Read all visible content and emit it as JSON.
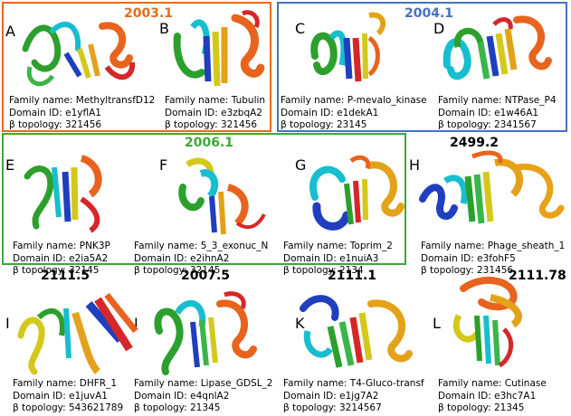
{
  "groups": [
    {
      "label": "2003.1",
      "color": "#e46c1a"
    },
    {
      "label": "2004.1",
      "color": "#4472c4"
    },
    {
      "label": "2006.1",
      "color": "#3aaa35"
    },
    {
      "label": "2499.2",
      "color": "#000000"
    },
    {
      "label": "2111.5",
      "color": "#000000"
    },
    {
      "label": "2007.5",
      "color": "#000000"
    },
    {
      "label": "2111.1",
      "color": "#000000"
    },
    {
      "label": "2111.78",
      "color": "#000000"
    }
  ],
  "panels": [
    {
      "letter": "A",
      "family": "Family name: MethyltransfD12",
      "domain": "Domain ID: e1yflA1",
      "topology": "β topology: 321456"
    },
    {
      "letter": "B",
      "family": "Family name: Tubulin",
      "domain": "Domain ID: e3zbqA2",
      "topology": "β topology: 321456"
    },
    {
      "letter": "C",
      "family": "Family name: P-mevalo_kinase",
      "domain": "Domain ID: e1dekA1",
      "topology": "β topology: 23145"
    },
    {
      "letter": "D",
      "family": "Family name: NTPase_P4",
      "domain": "Domain ID: e1w46A1",
      "topology": "β topology: 2341567"
    },
    {
      "letter": "E",
      "family": "Family name: PNK3P",
      "domain": "Domain ID: e2ia5A2",
      "topology": "β topology: 32145"
    },
    {
      "letter": "F",
      "family": "Family name: 5_3_exonuc_N",
      "domain": "Domain ID: e2ihnA2",
      "topology": "β topology: 32145"
    },
    {
      "letter": "G",
      "family": "Family name: Toprim_2",
      "domain": "Domain ID: e1nuiA3",
      "topology": "β topology: 2134"
    },
    {
      "letter": "H",
      "family": "Family name: Phage_sheath_1",
      "domain": "Domain ID: e3fohF5",
      "topology": "β topology: 231456"
    },
    {
      "letter": "I",
      "family": "Family name: DHFR_1",
      "domain": "Domain ID: e1juvA1",
      "topology": "β topology: 543621789"
    },
    {
      "letter": "J",
      "family": "Family name: Lipase_GDSL_2",
      "domain": "Domain ID: e4qnlA2",
      "topology": "β topology: 21345"
    },
    {
      "letter": "K",
      "family": "Family name: T4-Gluco-transf",
      "domain": "Domain ID: e1jg7A2",
      "topology": "β topology: 3214567"
    },
    {
      "letter": "L",
      "family": "Family name: Cutinase",
      "domain": "Domain ID: e3hc7A1",
      "topology": "β topology: 21345"
    }
  ]
}
